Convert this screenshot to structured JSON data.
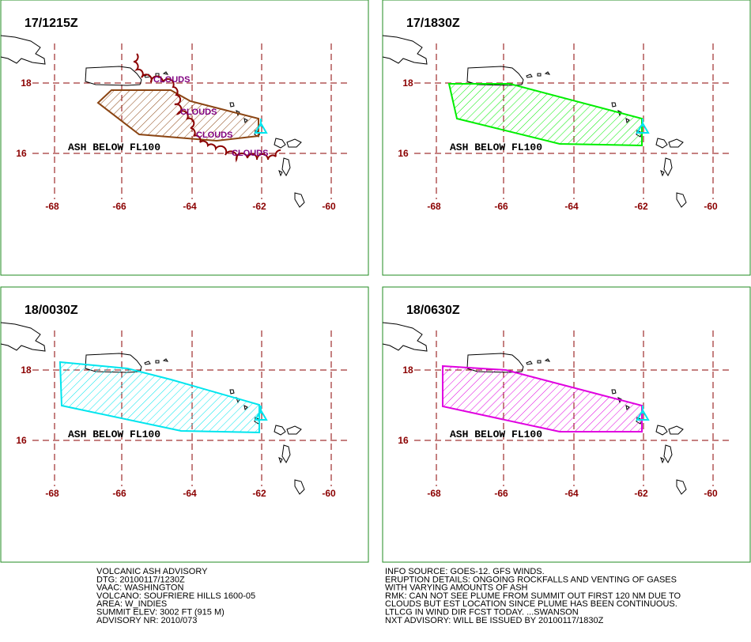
{
  "panels": [
    {
      "title": "17/1215Z",
      "label": "ASH BELOW FL100",
      "color": "#8b4513",
      "cloud_labels": [
        "CLOUDS",
        "CLOUDS",
        "CLOUDS",
        "CLOUDS"
      ]
    },
    {
      "title": "17/1830Z",
      "label": "ASH BELOW FL100",
      "color": "#00ee00"
    },
    {
      "title": "18/0030Z",
      "label": "ASH BELOW FL100",
      "color": "#00e5ee"
    },
    {
      "title": "18/0630Z",
      "label": "ASH BELOW FL100",
      "color": "#e000e0"
    }
  ],
  "axes": {
    "lat_labels": [
      "18",
      "16"
    ],
    "lon_labels": [
      "-68",
      "-66",
      "-64",
      "-62",
      "-60"
    ]
  },
  "advisory": {
    "left": [
      "VOLCANIC ASH ADVISORY",
      "DTG: 20100117/1230Z",
      "VAAC: WASHINGTON",
      "VOLCANO: SOUFRIERE HILLS 1600-05",
      "AREA: W_INDIES",
      "SUMMIT ELEV: 3002 FT (915 M)",
      "ADVISORY NR: 2010/073"
    ],
    "right": [
      "INFO SOURCE: GOES-12. GFS WINDS.",
      "ERUPTION DETAILS: ONGOING ROCKFALLS AND VENTING OF GASES",
      "WITH VARYING AMOUNTS OF ASH",
      "RMK: CAN NOT SEE PLUME FROM SUMMIT OUT FIRST 120 NM DUE TO",
      "CLOUDS BUT EST LOCATION SINCE PLUME HAS BEEN CONTINUOUS.",
      "LTLCG IN WIND DIR FCST TODAY. ...SWANSON",
      "NXT ADVISORY: WILL BE ISSUED BY 20100117/1830Z"
    ]
  }
}
